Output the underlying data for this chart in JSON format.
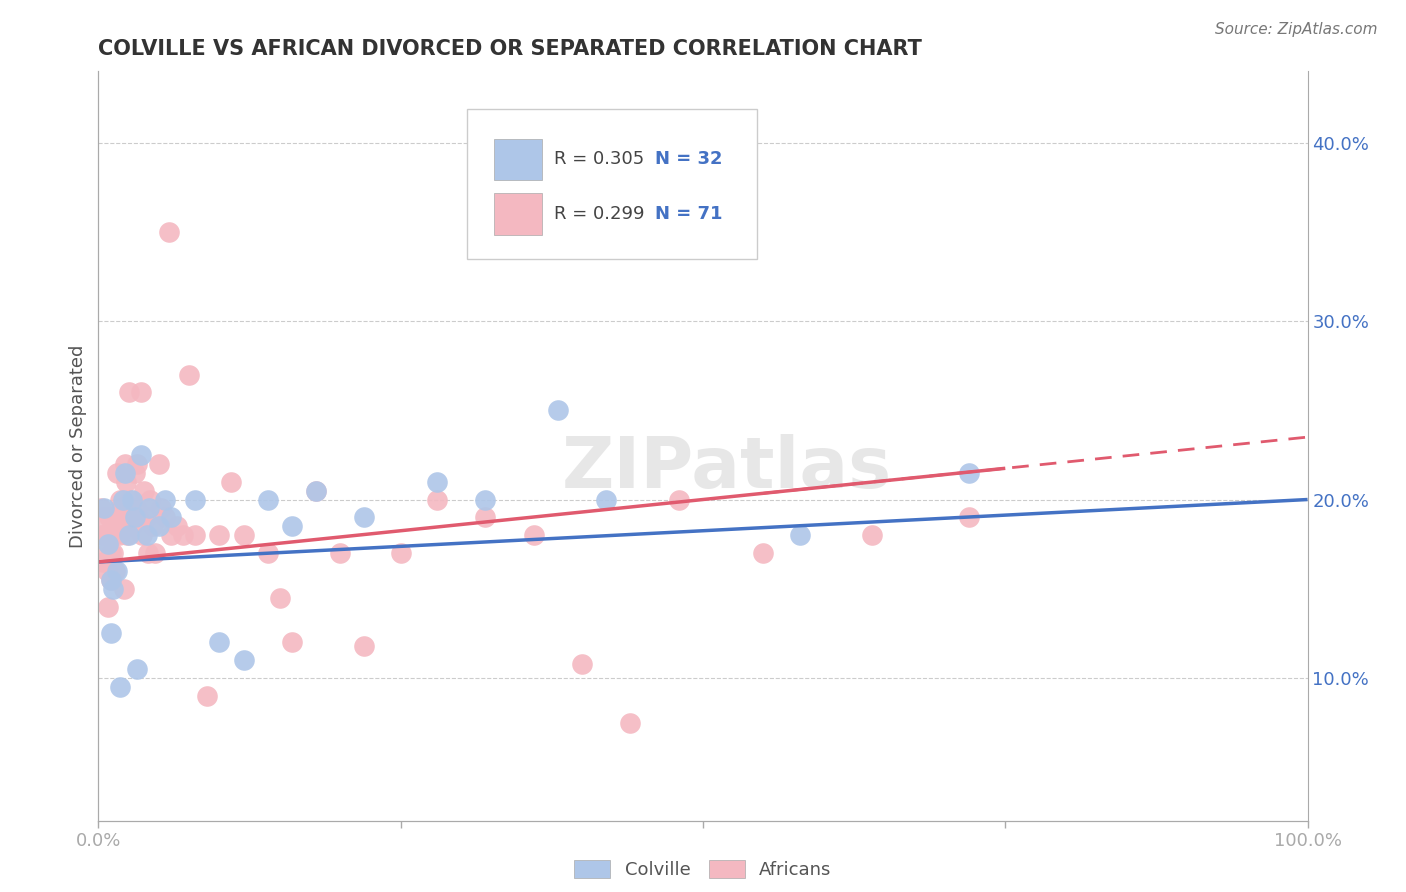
{
  "title": "COLVILLE VS AFRICAN DIVORCED OR SEPARATED CORRELATION CHART",
  "source": "Source: ZipAtlas.com",
  "y_axis_label": "Divorced or Separated",
  "xlim": [
    0.0,
    1.0
  ],
  "ylim": [
    0.02,
    0.44
  ],
  "colville_color": "#aec6e8",
  "african_color": "#f4b8c1",
  "line_colville_color": "#4472c4",
  "line_african_color": "#e05a6e",
  "watermark": "ZIPatlas",
  "background_color": "#ffffff",
  "colville_x": [
    0.005,
    0.008,
    0.01,
    0.01,
    0.012,
    0.015,
    0.018,
    0.02,
    0.022,
    0.025,
    0.028,
    0.03,
    0.032,
    0.035,
    0.04,
    0.042,
    0.05,
    0.055,
    0.06,
    0.08,
    0.1,
    0.12,
    0.14,
    0.16,
    0.18,
    0.22,
    0.28,
    0.32,
    0.38,
    0.42,
    0.58,
    0.72
  ],
  "colville_y": [
    0.195,
    0.175,
    0.125,
    0.155,
    0.15,
    0.16,
    0.095,
    0.2,
    0.215,
    0.18,
    0.2,
    0.19,
    0.105,
    0.225,
    0.18,
    0.195,
    0.185,
    0.2,
    0.19,
    0.2,
    0.12,
    0.11,
    0.2,
    0.185,
    0.205,
    0.19,
    0.21,
    0.2,
    0.25,
    0.2,
    0.18,
    0.215
  ],
  "african_x": [
    0.002,
    0.003,
    0.004,
    0.005,
    0.005,
    0.006,
    0.007,
    0.008,
    0.009,
    0.01,
    0.01,
    0.01,
    0.011,
    0.011,
    0.012,
    0.013,
    0.014,
    0.015,
    0.016,
    0.017,
    0.018,
    0.019,
    0.02,
    0.021,
    0.022,
    0.023,
    0.024,
    0.025,
    0.026,
    0.028,
    0.03,
    0.031,
    0.032,
    0.033,
    0.035,
    0.036,
    0.038,
    0.04,
    0.041,
    0.043,
    0.045,
    0.047,
    0.05,
    0.052,
    0.055,
    0.058,
    0.06,
    0.065,
    0.07,
    0.075,
    0.08,
    0.09,
    0.1,
    0.11,
    0.12,
    0.14,
    0.15,
    0.16,
    0.18,
    0.2,
    0.22,
    0.25,
    0.28,
    0.32,
    0.36,
    0.4,
    0.44,
    0.48,
    0.55,
    0.64,
    0.72
  ],
  "african_y": [
    0.195,
    0.18,
    0.165,
    0.19,
    0.18,
    0.17,
    0.16,
    0.14,
    0.19,
    0.18,
    0.17,
    0.155,
    0.19,
    0.18,
    0.17,
    0.18,
    0.16,
    0.215,
    0.19,
    0.18,
    0.2,
    0.195,
    0.185,
    0.15,
    0.22,
    0.21,
    0.18,
    0.26,
    0.2,
    0.185,
    0.215,
    0.195,
    0.22,
    0.19,
    0.26,
    0.18,
    0.205,
    0.19,
    0.17,
    0.2,
    0.185,
    0.17,
    0.22,
    0.195,
    0.19,
    0.35,
    0.18,
    0.185,
    0.18,
    0.27,
    0.18,
    0.09,
    0.18,
    0.21,
    0.18,
    0.17,
    0.145,
    0.12,
    0.205,
    0.17,
    0.118,
    0.17,
    0.2,
    0.19,
    0.18,
    0.108,
    0.075,
    0.2,
    0.17,
    0.18,
    0.19
  ]
}
